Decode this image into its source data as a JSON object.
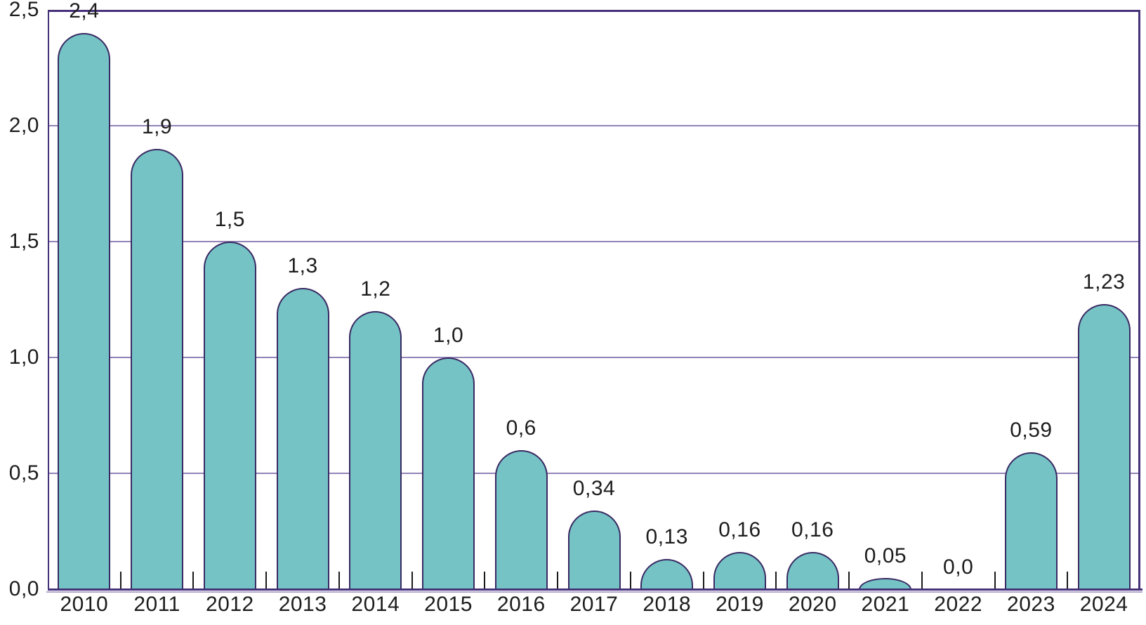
{
  "chart_data": {
    "type": "bar",
    "categories": [
      "2010",
      "2011",
      "2012",
      "2013",
      "2014",
      "2015",
      "2016",
      "2017",
      "2018",
      "2019",
      "2020",
      "2021",
      "2022",
      "2023",
      "2024"
    ],
    "values": [
      2.4,
      1.9,
      1.5,
      1.3,
      1.2,
      1.0,
      0.6,
      0.34,
      0.13,
      0.16,
      0.16,
      0.05,
      0.0,
      0.59,
      1.23
    ],
    "value_labels": [
      "2,4",
      "1,9",
      "1,5",
      "1,3",
      "1,2",
      "1,0",
      "0,6",
      "0,34",
      "0,13",
      "0,16",
      "0,16",
      "0,05",
      "0,0",
      "0,59",
      "1,23"
    ],
    "y_ticks": [
      {
        "value": 0.0,
        "label": "0,0"
      },
      {
        "value": 0.5,
        "label": "0,5"
      },
      {
        "value": 1.0,
        "label": "1,0"
      },
      {
        "value": 1.5,
        "label": "1,5"
      },
      {
        "value": 2.0,
        "label": "2,0"
      },
      {
        "value": 2.5,
        "label": "2,5"
      }
    ],
    "ylim": [
      0,
      2.5
    ],
    "grid": true,
    "legend": false,
    "bar_top_style": "rounded-dome",
    "colors": {
      "bar_fill": "#75c3c5",
      "bar_stroke": "#392a63",
      "frame": "#453279",
      "gridline": "#9383b7",
      "axis_underline": "#b2a4ce",
      "x_tick": "#1a1a1a",
      "label_text": "#1d1d1d"
    }
  }
}
